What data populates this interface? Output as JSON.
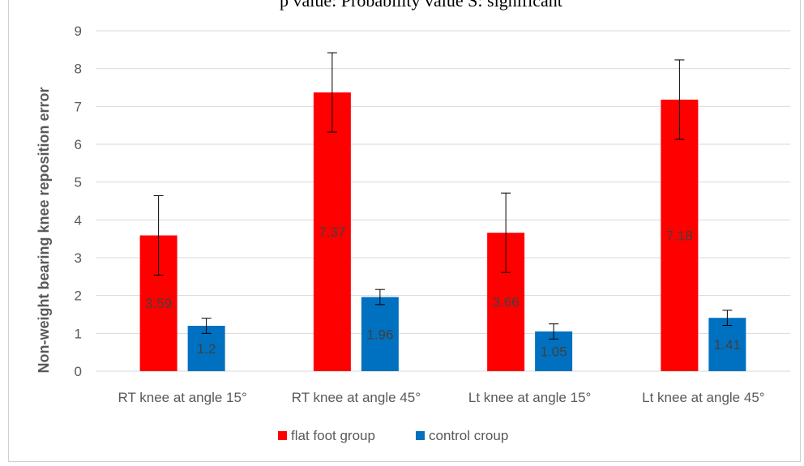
{
  "header_note": "p value: Probability value          S: significant",
  "chart_data": {
    "type": "bar",
    "title": "",
    "xlabel": "",
    "ylabel": "Non-weight bearing knee reposition error",
    "ylim": [
      0,
      9
    ],
    "yticks": [
      0,
      1,
      2,
      3,
      4,
      5,
      6,
      7,
      8,
      9
    ],
    "grid": true,
    "legend_position": "bottom",
    "categories": [
      "RT knee at angle 15°",
      "RT knee at angle 45°",
      "Lt knee at angle 15°",
      "Lt knee at angle 45°"
    ],
    "series": [
      {
        "name": "flat foot group",
        "color": "#ff0000",
        "values": [
          3.59,
          7.37,
          3.66,
          7.18
        ],
        "errors": [
          1.05,
          1.05,
          1.05,
          1.05
        ]
      },
      {
        "name": "control croup",
        "color": "#0070c0",
        "values": [
          1.2,
          1.96,
          1.05,
          1.41
        ],
        "errors": [
          0.2,
          0.2,
          0.2,
          0.2
        ]
      }
    ]
  }
}
